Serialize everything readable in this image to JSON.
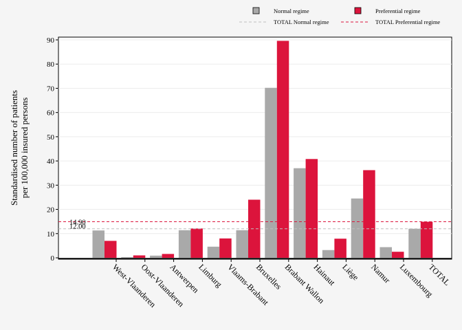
{
  "chart_data": {
    "type": "bar",
    "title": "",
    "ylabel": [
      "Standardised number of patients",
      "per 100,000 insured persons"
    ],
    "xlabel": "",
    "ylim": [
      0,
      92
    ],
    "yticks": [
      0,
      10,
      20,
      30,
      40,
      50,
      60,
      70,
      80,
      90
    ],
    "grid": true,
    "legend_position": "top-right",
    "categories": [
      "West-Vlaanderen",
      "Oost-Vlaanderen",
      "Antwerpen",
      "Limburg",
      "Vlaams-Brabant",
      "Bruxelles",
      "Brabant Wallon",
      "Hainaut",
      "Liège",
      "Namur",
      "Luxembourg",
      "TOTAL"
    ],
    "series": [
      {
        "name": "Normal regime",
        "color": "#a9a9a9",
        "values": [
          11.3,
          0.3,
          0.9,
          11.4,
          4.6,
          11.4,
          70.2,
          37.0,
          3.2,
          24.5,
          4.4,
          12.0
        ]
      },
      {
        "name": "Preferential regime",
        "color": "#dc143c",
        "values": [
          7.0,
          1.0,
          1.6,
          12.1,
          8.0,
          24.0,
          89.6,
          40.8,
          7.9,
          36.2,
          2.5,
          14.9
        ]
      }
    ],
    "reference_lines": [
      {
        "name": "TOTAL Normal regime",
        "value": 12.0,
        "label": "12.00",
        "color": "#bdbdbd"
      },
      {
        "name": "TOTAL Preferential regime",
        "value": 14.9,
        "label": "14.90",
        "color": "#dc143c"
      }
    ]
  }
}
